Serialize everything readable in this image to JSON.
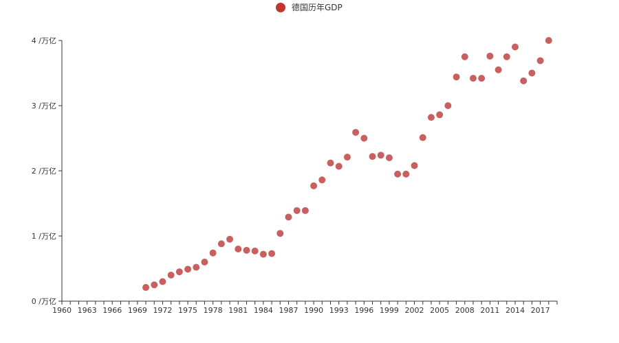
{
  "chart_data": {
    "type": "scatter",
    "legend": {
      "label": "德国历年GDP",
      "color": "#c23531",
      "position": "top-center"
    },
    "point_color": "#c96060",
    "x_tick_labels": [
      "1960",
      "1963",
      "1966",
      "1969",
      "1972",
      "1975",
      "1978",
      "1981",
      "1984",
      "1987",
      "1990",
      "1993",
      "1996",
      "1999",
      "2002",
      "2005",
      "2008",
      "2011",
      "2014",
      "2017"
    ],
    "xlim": [
      1960,
      2019
    ],
    "ylim": [
      0,
      4
    ],
    "y_ticks": [
      0,
      1,
      2,
      3,
      4
    ],
    "y_tick_labels": [
      "0 /万亿",
      "1 /万亿",
      "2 /万亿",
      "3 /万亿",
      "4 /万亿"
    ],
    "grid": false,
    "series": [
      {
        "x": [
          1970,
          1971,
          1972,
          1973,
          1974,
          1975,
          1976,
          1977,
          1978,
          1979,
          1980,
          1981,
          1982,
          1983,
          1984,
          1985,
          1986,
          1987,
          1988,
          1989,
          1990,
          1991,
          1992,
          1993,
          1994,
          1995,
          1996,
          1997,
          1998,
          1999,
          2000,
          2001,
          2002,
          2003,
          2004,
          2005,
          2006,
          2007,
          2008,
          2009,
          2010,
          2011,
          2012,
          2013,
          2014,
          2015,
          2016,
          2017,
          2018
        ],
        "y": [
          0.21,
          0.25,
          0.3,
          0.4,
          0.45,
          0.49,
          0.52,
          0.6,
          0.74,
          0.88,
          0.95,
          0.8,
          0.78,
          0.77,
          0.72,
          0.73,
          1.04,
          1.29,
          1.39,
          1.39,
          1.77,
          1.86,
          2.12,
          2.07,
          2.21,
          2.59,
          2.5,
          2.22,
          2.24,
          2.2,
          1.95,
          1.95,
          2.08,
          2.51,
          2.82,
          2.86,
          3.0,
          3.44,
          3.75,
          3.42,
          3.42,
          3.76,
          3.55,
          3.75,
          3.9,
          3.38,
          3.5,
          3.69,
          4.0
        ]
      }
    ]
  }
}
